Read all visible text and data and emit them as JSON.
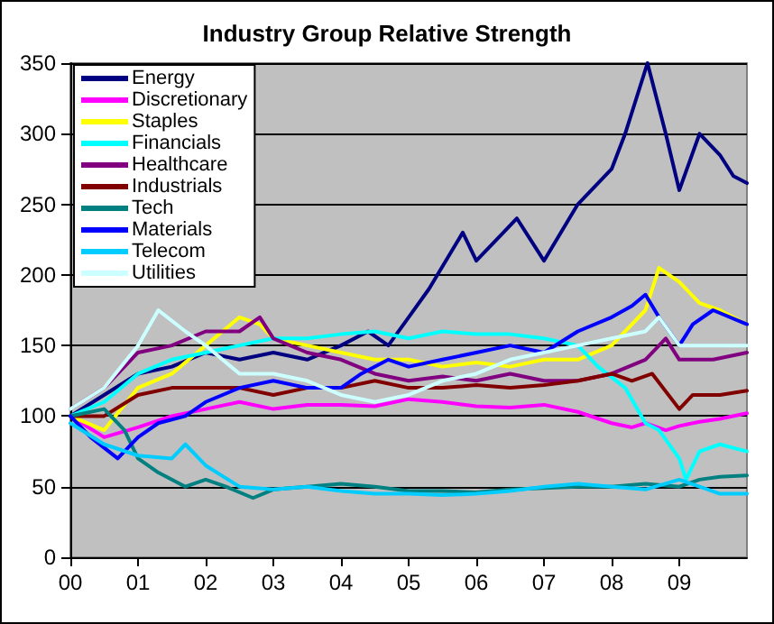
{
  "chart_data": {
    "type": "line",
    "title": "Industry Group Relative Strength",
    "xlim": [
      0,
      10
    ],
    "xticks": [
      {
        "value": 0,
        "label": "00"
      },
      {
        "value": 1,
        "label": "01"
      },
      {
        "value": 2,
        "label": "02"
      },
      {
        "value": 3,
        "label": "03"
      },
      {
        "value": 4,
        "label": "04"
      },
      {
        "value": 5,
        "label": "05"
      },
      {
        "value": 6,
        "label": "06"
      },
      {
        "value": 7,
        "label": "07"
      },
      {
        "value": 8,
        "label": "08"
      },
      {
        "value": 9,
        "label": "09"
      }
    ],
    "ylim": [
      0,
      350
    ],
    "yticks": [
      0,
      50,
      100,
      150,
      200,
      250,
      300,
      350
    ],
    "grid": "y",
    "legend": "top left",
    "marker": "none",
    "line_style": "solid",
    "series": [
      {
        "name": "Energy",
        "color": "#000080",
        "x": [
          0,
          0.5,
          1,
          1.5,
          2,
          2.5,
          3,
          3.5,
          4,
          4.4,
          4.7,
          5,
          5.3,
          5.8,
          6,
          6.6,
          7,
          7.5,
          8,
          8.2,
          8.53,
          8.8,
          9,
          9.3,
          9.6,
          9.8,
          10
        ],
        "values": [
          100,
          115,
          130,
          135,
          145,
          140,
          145,
          140,
          150,
          160,
          150,
          170,
          190,
          230,
          210,
          240,
          210,
          250,
          275,
          300,
          350,
          300,
          260,
          300,
          285,
          270,
          265
        ]
      },
      {
        "name": "Discretionary",
        "color": "#ff00ff",
        "x": [
          0,
          0.5,
          1,
          1.5,
          2,
          2.5,
          3,
          3.5,
          4,
          4.5,
          5,
          5.5,
          6,
          6.5,
          7,
          7.5,
          8,
          8.3,
          8.5,
          8.8,
          9,
          9.3,
          9.6,
          10
        ],
        "values": [
          100,
          85,
          92,
          100,
          105,
          110,
          105,
          108,
          108,
          107,
          112,
          110,
          107,
          106,
          108,
          103,
          95,
          92,
          95,
          90,
          93,
          96,
          98,
          102
        ]
      },
      {
        "name": "Staples",
        "color": "#ffff00",
        "x": [
          0,
          0.5,
          1,
          1.5,
          2,
          2.5,
          2.8,
          3,
          3.5,
          4,
          4.5,
          5,
          5.5,
          6,
          6.5,
          7,
          7.5,
          8,
          8.5,
          8.7,
          9,
          9.3,
          9.6,
          10
        ],
        "values": [
          100,
          90,
          120,
          130,
          150,
          170,
          165,
          155,
          150,
          145,
          140,
          140,
          135,
          138,
          135,
          140,
          140,
          150,
          175,
          205,
          195,
          180,
          175,
          165
        ]
      },
      {
        "name": "Financials",
        "color": "#00ffff",
        "x": [
          0,
          0.5,
          1,
          1.5,
          2,
          2.5,
          3,
          3.5,
          4,
          4.5,
          5,
          5.5,
          6,
          6.5,
          7,
          7.5,
          7.8,
          8.2,
          8.5,
          8.7,
          9,
          9.1,
          9.3,
          9.6,
          10
        ],
        "values": [
          100,
          110,
          130,
          140,
          145,
          150,
          155,
          155,
          158,
          160,
          155,
          160,
          158,
          158,
          155,
          150,
          135,
          120,
          95,
          90,
          70,
          55,
          75,
          80,
          75
        ]
      },
      {
        "name": "Healthcare",
        "color": "#800080",
        "x": [
          0,
          0.5,
          1,
          1.5,
          2,
          2.5,
          2.8,
          3,
          3.5,
          4,
          4.5,
          5,
          5.5,
          6,
          6.5,
          7,
          7.5,
          8,
          8.5,
          8.8,
          9,
          9.5,
          10
        ],
        "values": [
          105,
          120,
          145,
          150,
          160,
          160,
          170,
          155,
          145,
          140,
          130,
          125,
          128,
          125,
          130,
          125,
          125,
          130,
          140,
          155,
          140,
          140,
          145
        ]
      },
      {
        "name": "Industrials",
        "color": "#800000",
        "x": [
          0,
          0.5,
          1,
          1.5,
          2,
          2.5,
          3,
          3.5,
          4,
          4.5,
          5,
          5.5,
          6,
          6.5,
          7,
          7.5,
          8,
          8.3,
          8.6,
          9,
          9.2,
          9.6,
          10
        ],
        "values": [
          100,
          100,
          115,
          120,
          120,
          120,
          115,
          120,
          120,
          125,
          120,
          120,
          122,
          120,
          122,
          125,
          130,
          125,
          130,
          105,
          115,
          115,
          118
        ]
      },
      {
        "name": "Tech",
        "color": "#008080",
        "x": [
          0,
          0.5,
          0.8,
          1,
          1.3,
          1.7,
          2,
          2.3,
          2.7,
          3,
          3.5,
          4,
          4.5,
          5,
          5.5,
          6,
          6.5,
          7,
          7.5,
          8,
          8.5,
          9,
          9.3,
          9.6,
          10
        ],
        "values": [
          100,
          105,
          90,
          70,
          60,
          50,
          55,
          50,
          42,
          48,
          50,
          52,
          50,
          47,
          47,
          46,
          48,
          49,
          50,
          50,
          52,
          50,
          55,
          57,
          58
        ]
      },
      {
        "name": "Materials",
        "color": "#0000ff",
        "x": [
          0,
          0.3,
          0.7,
          1,
          1.3,
          1.7,
          2,
          2.5,
          3,
          3.5,
          4,
          4.3,
          4.7,
          5,
          5.5,
          6,
          6.5,
          7,
          7.5,
          8,
          8.3,
          8.5,
          8.7,
          9,
          9.2,
          9.5,
          10
        ],
        "values": [
          100,
          85,
          70,
          85,
          95,
          100,
          110,
          120,
          125,
          120,
          120,
          130,
          140,
          135,
          140,
          145,
          150,
          145,
          160,
          170,
          178,
          186,
          170,
          150,
          165,
          175,
          165
        ]
      },
      {
        "name": "Telecom",
        "color": "#00ccff",
        "x": [
          0,
          0.5,
          1,
          1.5,
          1.7,
          2,
          2.5,
          3,
          3.5,
          4,
          4.5,
          5,
          5.5,
          6,
          6.5,
          7,
          7.5,
          8,
          8.5,
          9,
          9.3,
          9.6,
          10
        ],
        "values": [
          95,
          80,
          72,
          70,
          80,
          65,
          50,
          48,
          50,
          47,
          45,
          45,
          44,
          45,
          47,
          50,
          52,
          50,
          48,
          55,
          50,
          45,
          45
        ]
      },
      {
        "name": "Utilities",
        "color": "#ccffff",
        "x": [
          0,
          0.5,
          1,
          1.3,
          1.7,
          2,
          2.5,
          3,
          3.5,
          4,
          4.5,
          5,
          5.5,
          6,
          6.5,
          7,
          7.5,
          8,
          8.5,
          8.7,
          9,
          9.5,
          10
        ],
        "values": [
          105,
          120,
          150,
          175,
          160,
          150,
          130,
          130,
          125,
          115,
          110,
          115,
          125,
          130,
          140,
          145,
          150,
          155,
          160,
          170,
          150,
          150,
          150
        ]
      }
    ]
  }
}
